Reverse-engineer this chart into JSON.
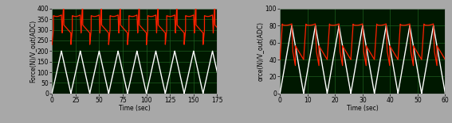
{
  "plot1": {
    "xlabel": "Time (sec)",
    "ylabel": "Force(N)/V_out(ADC)",
    "xlim": [
      0,
      175
    ],
    "ylim": [
      0,
      400
    ],
    "yticks": [
      0,
      50,
      100,
      150,
      200,
      250,
      300,
      350,
      400
    ],
    "xticks": [
      0,
      25,
      50,
      75,
      100,
      125,
      150,
      175
    ],
    "force_max": 200,
    "force_period": 20.0,
    "voltage_low": 230,
    "voltage_high": 370,
    "voltage_dip": 285
  },
  "plot2": {
    "xlabel": "Time (sec)",
    "ylabel": "orce(N)/V_out(ADC)",
    "xlim": [
      0,
      60
    ],
    "ylim": [
      0,
      100
    ],
    "yticks": [
      0,
      20,
      40,
      60,
      80,
      100
    ],
    "xticks": [
      0,
      10,
      20,
      30,
      40,
      50,
      60
    ],
    "force_max": 80,
    "force_period": 8.57,
    "voltage_low": 40,
    "voltage_high": 82,
    "voltage_dip": 50
  },
  "bg_color": "#001800",
  "grid_color": "#1e5c1e",
  "force_color": "#ffffff",
  "voltage_color": "#ff2000",
  "outer_bg": "#a8a8a8",
  "tick_fontsize": 5.5,
  "label_fontsize": 5.5,
  "linewidth_force": 1.0,
  "linewidth_voltage": 0.9
}
